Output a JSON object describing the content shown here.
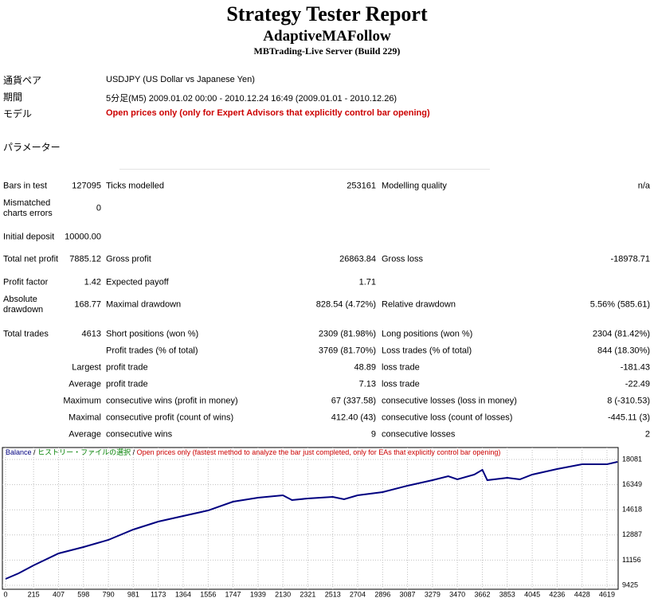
{
  "header": {
    "title": "Strategy Tester Report",
    "subtitle": "AdaptiveMAFollow",
    "server": "MBTrading-Live Server (Build 229)"
  },
  "settings": [
    {
      "label": "通貨ペア",
      "value": "USDJPY (US Dollar vs Japanese Yen)"
    },
    {
      "label": "期間",
      "value": "5分足(M5) 2009.01.02 00:00 - 2010.12.24 16:49 (2009.01.01 - 2010.12.26)"
    },
    {
      "label": "モデル",
      "value": "Open prices only (only for Expert Advisors that explicitly control bar opening)"
    }
  ],
  "parameters_label": "パラメーター",
  "table": {
    "rows": [
      [
        "Bars in test",
        "127095",
        "Ticks modelled",
        "253161",
        "Modelling quality",
        "n/a"
      ],
      [
        "Mismatched charts errors",
        "0",
        null,
        null,
        null,
        null
      ],
      [
        "Initial deposit",
        "10000.00",
        null,
        null,
        null,
        null
      ],
      [
        "Total net profit",
        "7885.12",
        "Gross profit",
        "26863.84",
        "Gross loss",
        "-18978.71"
      ],
      [
        "Profit factor",
        "1.42",
        "Expected payoff",
        "1.71",
        null,
        null
      ],
      [
        "Absolute drawdown",
        "168.77",
        "Maximal drawdown",
        "828.54 (4.72%)",
        "Relative drawdown",
        "5.56% (585.61)"
      ],
      [
        "Total trades",
        "4613",
        "Short positions (won %)",
        "2309 (81.98%)",
        "Long positions (won %)",
        "2304 (81.42%)"
      ],
      [
        null,
        null,
        "Profit trades (% of total)",
        "3769 (81.70%)",
        "Loss trades (% of total)",
        "844 (18.30%)"
      ],
      [
        null,
        "Largest",
        "profit trade",
        "48.89",
        "loss trade",
        "-181.43"
      ],
      [
        null,
        "Average",
        "profit trade",
        "7.13",
        "loss trade",
        "-22.49"
      ],
      [
        null,
        "Maximum",
        "consecutive wins (profit in money)",
        "67 (337.58)",
        "consecutive losses (loss in money)",
        "8 (-310.53)"
      ],
      [
        null,
        "Maximal",
        "consecutive profit (count of wins)",
        "412.40 (43)",
        "consecutive loss (count of losses)",
        "-445.11 (3)"
      ],
      [
        null,
        "Average",
        "consecutive wins",
        "9",
        "consecutive losses",
        "2"
      ]
    ]
  },
  "chart_data": {
    "type": "line",
    "legend_separator": "/",
    "notes": [
      {
        "text": "ヒストリー・ファイルの選択",
        "color": "#008000"
      },
      {
        "text": "Open prices only (fastest method to analyze the bar just completed, only for EAs that explicitly control bar opening)",
        "color": "#cc0000"
      }
    ],
    "x": [
      0,
      100,
      215,
      407,
      598,
      790,
      981,
      1173,
      1364,
      1556,
      1747,
      1939,
      2130,
      2200,
      2321,
      2513,
      2600,
      2704,
      2896,
      3087,
      3279,
      3400,
      3470,
      3600,
      3662,
      3700,
      3853,
      3950,
      4045,
      4236,
      4428,
      4619,
      4700
    ],
    "series": [
      {
        "name": "Balance",
        "color": "#000080",
        "values": [
          9863,
          10247,
          10795,
          11616,
          12055,
          12548,
          13260,
          13807,
          14191,
          14574,
          15177,
          15451,
          15615,
          15287,
          15396,
          15506,
          15342,
          15615,
          15834,
          16273,
          16656,
          16930,
          16711,
          17040,
          17368,
          16656,
          16820,
          16711,
          17040,
          17423,
          17752,
          17752,
          17916
        ]
      }
    ],
    "xlim": [
      0,
      4705
    ],
    "ylim": [
      9151,
      18902
    ],
    "xticks": [
      0,
      215,
      407,
      598,
      790,
      981,
      1173,
      1364,
      1556,
      1747,
      1939,
      2130,
      2321,
      2513,
      2704,
      2896,
      3087,
      3279,
      3470,
      3662,
      3853,
      4045,
      4236,
      4428,
      4619
    ],
    "yticks": [
      9425,
      11156,
      12887,
      14618,
      16349,
      18081
    ],
    "grid": true
  }
}
